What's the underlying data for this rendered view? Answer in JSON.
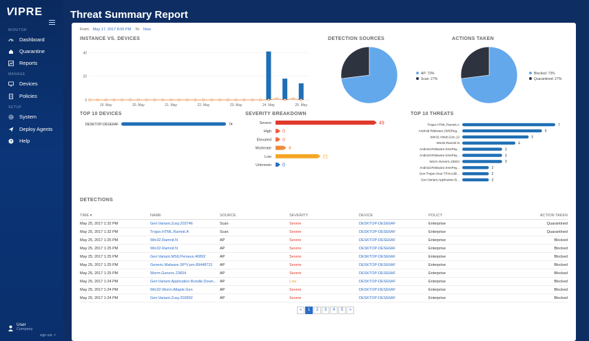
{
  "app": {
    "logo_v": "V",
    "logo_rest": "IPRE",
    "page_title": "Threat Summary Report"
  },
  "sidebar": {
    "sections": [
      {
        "label": "MONITOR",
        "items": [
          {
            "label": "Dashboard",
            "icon": "gauge-icon"
          },
          {
            "label": "Quarantine",
            "icon": "home-icon"
          },
          {
            "label": "Reports",
            "icon": "chart-icon"
          }
        ]
      },
      {
        "label": "MANAGE",
        "items": [
          {
            "label": "Devices",
            "icon": "monitor-icon"
          },
          {
            "label": "Policies",
            "icon": "document-icon"
          }
        ]
      },
      {
        "label": "SETUP",
        "items": [
          {
            "label": "System",
            "icon": "gear-icon"
          },
          {
            "label": "Deploy Agents",
            "icon": "send-icon"
          },
          {
            "label": "Help",
            "icon": "help-icon"
          }
        ]
      }
    ],
    "user": {
      "name": "User",
      "company": "Company",
      "signout": "sign out"
    }
  },
  "filter": {
    "from_label": "From",
    "from_value": "May 17, 2017 8:00 PM",
    "to_label": "To",
    "to_value": "Now"
  },
  "titles": {
    "instance": "INSTANCE VS. DEVICES",
    "detection_sources": "DETECTION SOURCES",
    "actions_taken": "ACTIONS TAKEN",
    "top_devices": "TOP 10 DEVICES",
    "severity": "SEVERITY BREAKDOWN",
    "top_threats": "TOP 10 THREATS",
    "detections": "DETECTIONS"
  },
  "chart_data": [
    {
      "type": "bar",
      "title": "INSTANCE VS. DEVICES",
      "categories": [
        "19. May",
        "20. May",
        "21. May",
        "22. May",
        "23. May",
        "24. May",
        "25. May"
      ],
      "y_ticks": [
        0,
        20,
        40
      ],
      "ylim": [
        0,
        42
      ],
      "bars": [
        {
          "x": 24.0,
          "value": 41
        },
        {
          "x": 24.5,
          "value": 18
        },
        {
          "x": 25.0,
          "value": 14
        }
      ],
      "line": {
        "x_start": 18.5,
        "x_end": 25.0,
        "step": 0.25,
        "values": "mostly 0, with 1 at 24.25 and 24.75"
      },
      "colors": {
        "bar": "#1f6fb5",
        "line": "#e87b2c"
      }
    },
    {
      "type": "pie",
      "title": "DETECTION SOURCES",
      "slices": [
        {
          "label": "AP: 73%",
          "value": 73,
          "color": "#64a8ec"
        },
        {
          "label": "Scan: 27%",
          "value": 27,
          "color": "#2e3340"
        }
      ]
    },
    {
      "type": "pie",
      "title": "ACTIONS TAKEN",
      "slices": [
        {
          "label": "Blocked: 73%",
          "value": 73,
          "color": "#64a8ec"
        },
        {
          "label": "Quarantined: 27%",
          "value": 27,
          "color": "#2e3340"
        }
      ]
    },
    {
      "type": "bar",
      "title": "TOP 10 DEVICES",
      "categories": [
        "DESKTOP-DESE6AF"
      ],
      "values": [
        74
      ],
      "color": "#1f6fb5"
    },
    {
      "type": "bar",
      "title": "SEVERITY BREAKDOWN",
      "categories": [
        "Severe",
        "High",
        "Elevated",
        "Moderate",
        "Low",
        "Unknown"
      ],
      "values": [
        49,
        0,
        0,
        4,
        21,
        0
      ],
      "colors": [
        "#e03a2a",
        "#f05a3a",
        "#f06a3a",
        "#f08a3a",
        "#f5a623",
        "#2b6cc4"
      ]
    },
    {
      "type": "bar",
      "title": "TOP 10 THREATS",
      "categories": [
        "Trojan.HTML.Ramnit.A",
        "Android.Riskware.SMSReg...",
        "Win32.Virtob.Gen.12",
        "Win32.Ramnit.N",
        "Android.Riskware.SmsPay...",
        "Android.Riskware.SmsPay...",
        "Worm.Generic.23834",
        "Android.Riskware.SmsPay...",
        "Gen:Trojan.Heur.TP.Ku1@...",
        "Gen:Variant.Application.B..."
      ],
      "values": [
        7,
        6,
        5,
        4,
        3,
        3,
        3,
        2,
        2,
        2
      ],
      "color": "#1f6fb5"
    }
  ],
  "detections": {
    "headers": [
      "TIME ▾",
      "NAME",
      "SOURCE",
      "SEVERITY",
      "DEVICE",
      "POLICY",
      "ACTION TAKEN"
    ],
    "rows": [
      [
        "May 25, 2017 1:32 PM",
        "Gen:Variant.Zusy.203746",
        "Scan",
        "Severe",
        "DESKTOP-DESE6AF",
        "Enterprise",
        "Quarantined"
      ],
      [
        "May 25, 2017 1:32 PM",
        "Trojan.HTML.Ramnit.A",
        "Scan",
        "Severe",
        "DESKTOP-DESE6AF",
        "Enterprise",
        "Quarantined"
      ],
      [
        "May 25, 2017 1:25 PM",
        "Win32.Ramnit.N",
        "AP",
        "Severe",
        "DESKTOP-DESE6AF",
        "Enterprise",
        "Blocked"
      ],
      [
        "May 25, 2017 1:25 PM",
        "Win32.Ramnit.N",
        "AP",
        "Severe",
        "DESKTOP-DESE6AF",
        "Enterprise",
        "Blocked"
      ],
      [
        "May 25, 2017 1:25 PM",
        "Gen:Variant.MSILPerseus.40892",
        "AP",
        "Severe",
        "DESKTOP-DESE6AF",
        "Enterprise",
        "Blocked"
      ],
      [
        "May 25, 2017 1:25 PM",
        "Generic.Malware.SP!V.prn.89448731",
        "AP",
        "Severe",
        "DESKTOP-DESE6AF",
        "Enterprise",
        "Blocked"
      ],
      [
        "May 25, 2017 1:25 PM",
        "Worm.Generic.23834",
        "AP",
        "Severe",
        "DESKTOP-DESE6AF",
        "Enterprise",
        "Blocked"
      ],
      [
        "May 25, 2017 1:24 PM",
        "Gen:Variant.Application.Bundle.Down...",
        "AP",
        "Low",
        "DESKTOP-DESE6AF",
        "Enterprise",
        "Blocked"
      ],
      [
        "May 25, 2017 1:24 PM",
        "Win32.Worm.Allaple.Gen",
        "AP",
        "Severe",
        "DESKTOP-DESE6AF",
        "Enterprise",
        "Blocked"
      ],
      [
        "May 25, 2017 1:24 PM",
        "Gen:Variant.Zusy.202892",
        "AP",
        "Severe",
        "DESKTOP-DESE6AF",
        "Enterprise",
        "Blocked"
      ]
    ]
  },
  "pagination": {
    "prev": "«",
    "pages": [
      "1",
      "2",
      "3",
      "4",
      "5"
    ],
    "active": "1",
    "next": "»"
  }
}
